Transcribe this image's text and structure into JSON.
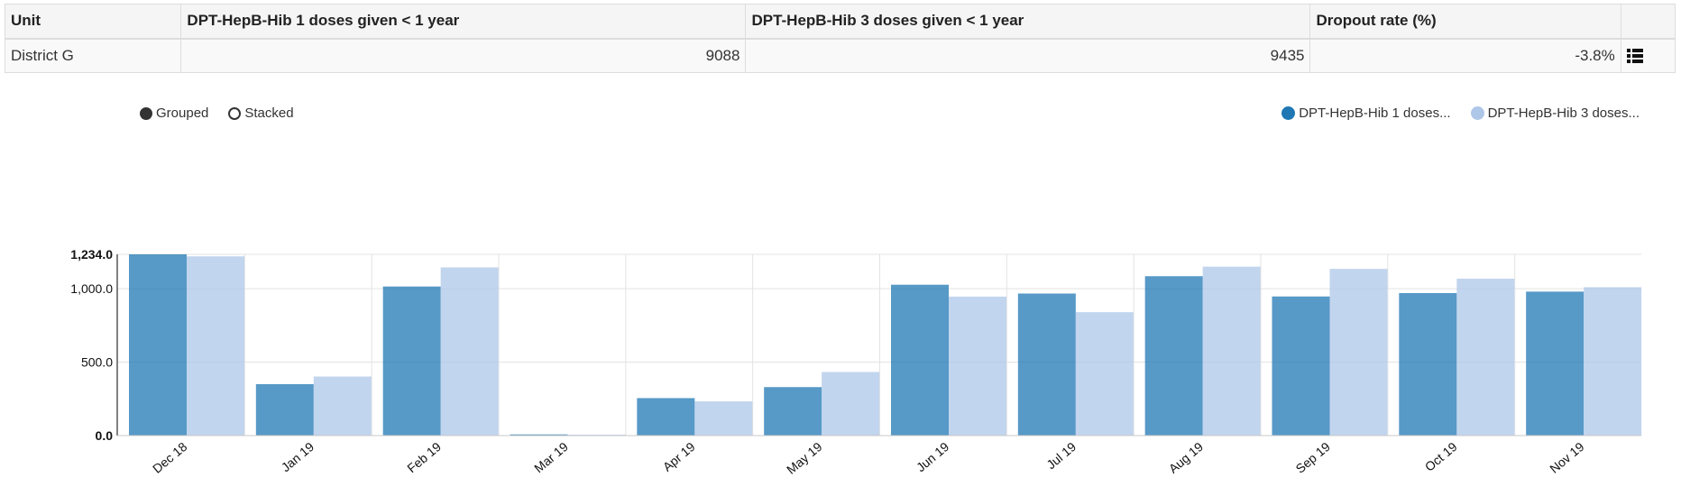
{
  "table": {
    "headers": [
      "Unit",
      "DPT-HepB-Hib 1 doses given < 1 year",
      "DPT-HepB-Hib 3 doses given < 1 year",
      "Dropout rate (%)"
    ],
    "rows": [
      {
        "unit": "District G",
        "dose1": "9088",
        "dose3": "9435",
        "dropout": "-3.8%"
      }
    ]
  },
  "controls": {
    "grouped_label": "Grouped",
    "stacked_label": "Stacked",
    "selected": "grouped"
  },
  "legend": [
    {
      "label": "DPT-HepB-Hib 1 doses...",
      "color": "#1f77b4"
    },
    {
      "label": "DPT-HepB-Hib 3 doses...",
      "color": "#aec7e8"
    }
  ],
  "chart_data": {
    "type": "bar",
    "mode": "grouped",
    "categories": [
      "Dec 18",
      "Jan 19",
      "Feb 19",
      "Mar 19",
      "Apr 19",
      "May 19",
      "Jun 19",
      "Jul 19",
      "Aug 19",
      "Sep 19",
      "Oct 19",
      "Nov 19"
    ],
    "series": [
      {
        "name": "DPT-HepB-Hib 1 doses given < 1 year",
        "color": "#1f77b4",
        "values": [
          1234,
          350,
          1015,
          8,
          255,
          330,
          1027,
          967,
          1085,
          947,
          970,
          980
        ]
      },
      {
        "name": "DPT-HepB-Hib 3 doses given < 1 year",
        "color": "#aec7e8",
        "values": [
          1220,
          402,
          1145,
          4,
          233,
          433,
          946,
          840,
          1150,
          1135,
          1068,
          1010
        ]
      }
    ],
    "y_ticks": [
      "0.0",
      "500.0",
      "1,000.0",
      "1,234.0"
    ],
    "y_tick_values": [
      0,
      500,
      1000,
      1234
    ],
    "ylim": [
      0,
      1234
    ],
    "grid": true
  }
}
